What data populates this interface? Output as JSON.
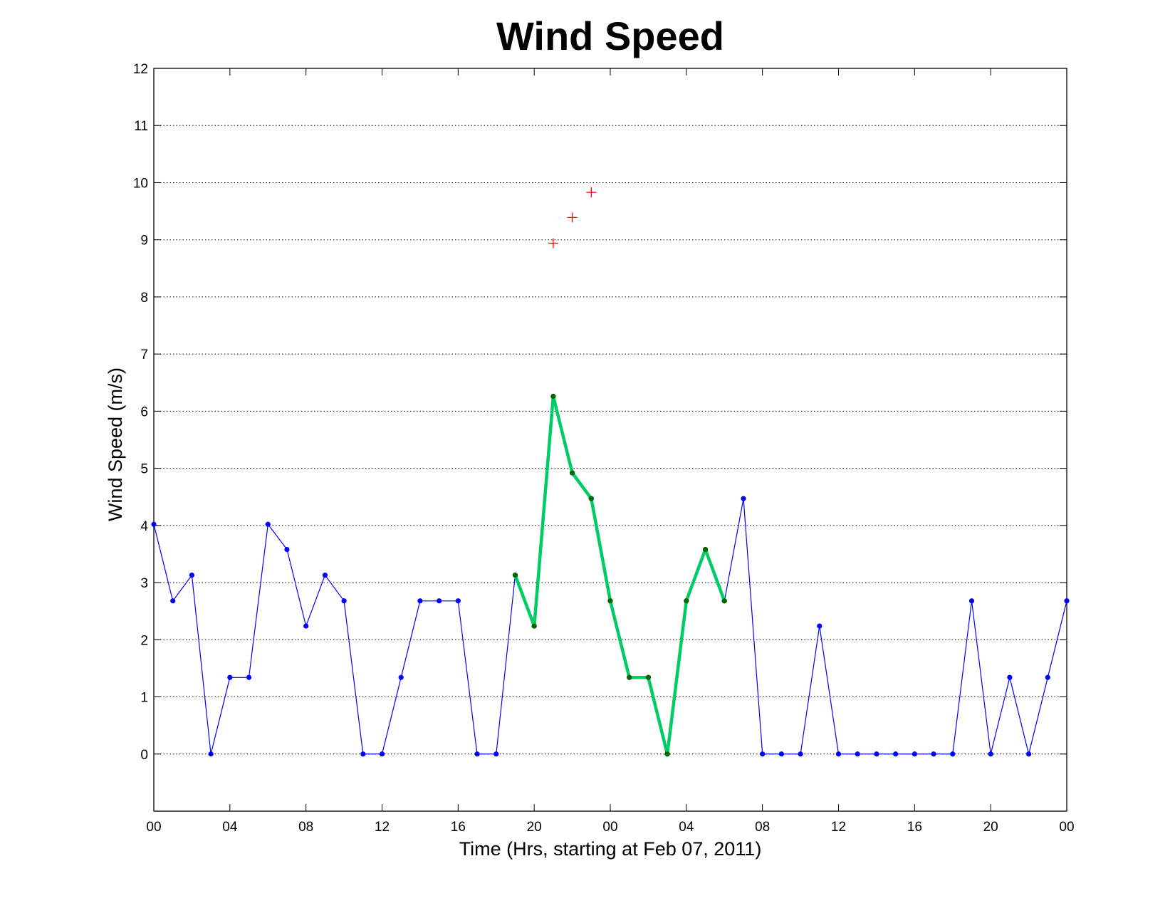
{
  "chart_data": {
    "type": "line",
    "title": "Wind Speed",
    "xlabel": "Time (Hrs, starting at Feb 07, 2011)",
    "ylabel": "Wind Speed (m/s)",
    "xlim": [
      0,
      48
    ],
    "ylim": [
      -1,
      12
    ],
    "grid": "horizontal-dotted",
    "x_ticks": [
      {
        "x": 0,
        "label": "00"
      },
      {
        "x": 4,
        "label": "04"
      },
      {
        "x": 8,
        "label": "08"
      },
      {
        "x": 12,
        "label": "12"
      },
      {
        "x": 16,
        "label": "16"
      },
      {
        "x": 20,
        "label": "20"
      },
      {
        "x": 24,
        "label": "00"
      },
      {
        "x": 28,
        "label": "04"
      },
      {
        "x": 32,
        "label": "08"
      },
      {
        "x": 36,
        "label": "12"
      },
      {
        "x": 40,
        "label": "16"
      },
      {
        "x": 44,
        "label": "20"
      },
      {
        "x": 48,
        "label": "00"
      }
    ],
    "y_ticks": [
      0,
      1,
      2,
      3,
      4,
      5,
      6,
      7,
      8,
      9,
      10,
      11,
      12
    ],
    "series": [
      {
        "role": "hourly",
        "color": "#0000ff",
        "marker": "dot",
        "x": [
          0,
          1,
          2,
          3,
          4,
          5,
          6,
          7,
          8,
          9,
          10,
          11,
          12,
          13,
          14,
          15,
          16,
          17,
          18,
          19,
          20,
          21,
          22,
          23,
          24,
          25,
          26,
          27,
          28,
          29,
          30,
          31,
          32,
          33,
          34,
          35,
          36,
          37,
          38,
          39,
          40,
          41,
          42,
          43,
          44,
          45,
          46,
          47,
          48
        ],
        "values": [
          4.02,
          2.68,
          3.13,
          0,
          1.34,
          1.34,
          4.02,
          3.58,
          2.24,
          3.13,
          2.68,
          0,
          0,
          1.34,
          2.68,
          2.68,
          2.68,
          0,
          0,
          3.13,
          2.24,
          6.26,
          4.92,
          4.47,
          2.68,
          1.34,
          1.34,
          0,
          2.68,
          3.58,
          2.68,
          4.47,
          0,
          0,
          0,
          2.24,
          0,
          0,
          0,
          0,
          0,
          0,
          0,
          2.68,
          0,
          1.34,
          0,
          1.34,
          2.68
        ]
      },
      {
        "role": "highlighted",
        "color": "#00cc66",
        "marker_color": "#006600",
        "marker": "dot",
        "x": [
          19,
          20,
          21,
          22,
          23,
          24,
          25,
          26,
          27,
          28,
          29,
          30
        ],
        "values": [
          3.13,
          2.24,
          6.26,
          4.92,
          4.47,
          2.68,
          1.34,
          1.34,
          0,
          2.68,
          3.58,
          2.68
        ]
      },
      {
        "role": "gusts",
        "color": "#ff0000",
        "marker": "plus",
        "x": [
          21,
          22,
          23
        ],
        "values": [
          8.94,
          9.39,
          9.83
        ]
      }
    ]
  }
}
